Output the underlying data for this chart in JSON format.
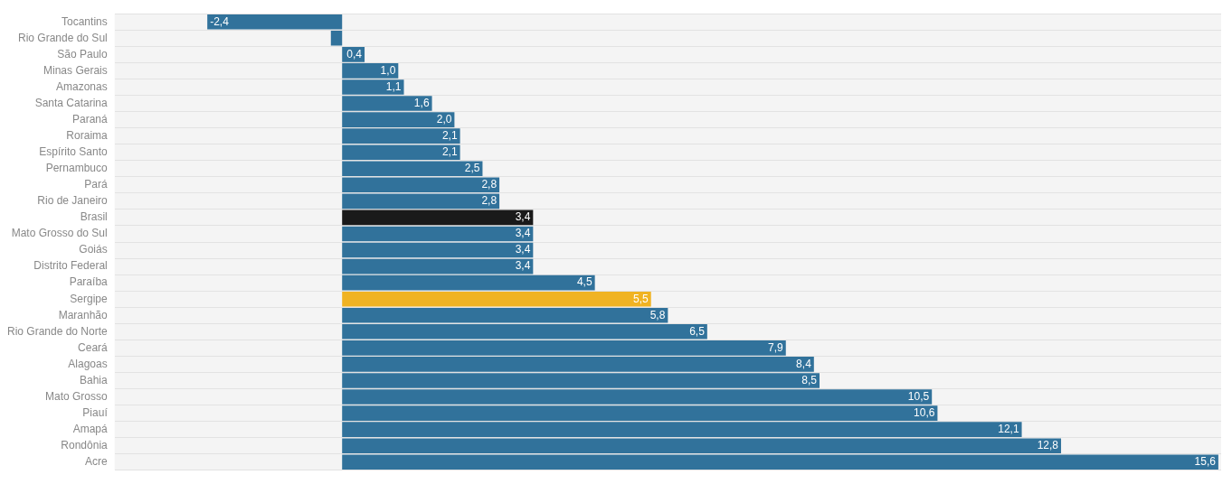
{
  "chart_data": {
    "type": "bar",
    "orientation": "horizontal",
    "categories": [
      "Tocantins",
      "Rio Grande do Sul",
      "São Paulo",
      "Minas Gerais",
      "Amazonas",
      "Santa Catarina",
      "Paraná",
      "Roraima",
      "Espírito Santo",
      "Pernambuco",
      "Pará",
      "Rio de Janeiro",
      "Brasil",
      "Mato Grosso do Sul",
      "Goiás",
      "Distrito Federal",
      "Paraíba",
      "Sergipe",
      "Maranhão",
      "Rio Grande do Norte",
      "Ceará",
      "Alagoas",
      "Bahia",
      "Mato Grosso",
      "Piauí",
      "Amapá",
      "Rondônia",
      "Acre"
    ],
    "values": [
      -2.4,
      -0.2,
      0.4,
      1.0,
      1.1,
      1.6,
      2.0,
      2.1,
      2.1,
      2.5,
      2.8,
      2.8,
      3.4,
      3.4,
      3.4,
      3.4,
      4.5,
      5.5,
      5.8,
      6.5,
      7.9,
      8.4,
      8.5,
      10.5,
      10.6,
      12.1,
      12.8,
      15.6
    ],
    "value_labels": [
      "-2,4",
      null,
      "0,4",
      "1,0",
      "1,1",
      "1,6",
      "2,0",
      "2,1",
      "2,1",
      "2,5",
      "2,8",
      "2,8",
      "3,4",
      "3,4",
      "3,4",
      "3,4",
      "4,5",
      "5,5",
      "5,8",
      "6,5",
      "7,9",
      "8,4",
      "8,5",
      "10,5",
      "10,6",
      "12,1",
      "12,8",
      "15,6"
    ],
    "colors": [
      "#31729b",
      "#31729b",
      "#31729b",
      "#31729b",
      "#31729b",
      "#31729b",
      "#31729b",
      "#31729b",
      "#31729b",
      "#31729b",
      "#31729b",
      "#31729b",
      "#1a1a1a",
      "#31729b",
      "#31729b",
      "#31729b",
      "#31729b",
      "#f0b323",
      "#31729b",
      "#31729b",
      "#31729b",
      "#31729b",
      "#31729b",
      "#31729b",
      "#31729b",
      "#31729b",
      "#31729b",
      "#31729b"
    ],
    "xlim": [
      -4.05,
      15.65
    ],
    "grid": "y",
    "tick_labels": "y"
  }
}
